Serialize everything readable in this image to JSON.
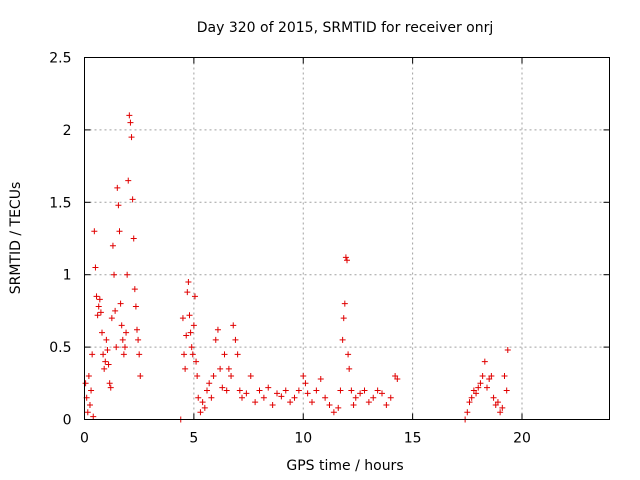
{
  "chart_data": {
    "type": "scatter",
    "title": "Day 320 of 2015, SRMTID for receiver onrj",
    "xlabel": "GPS time / hours",
    "ylabel": "SRMTID / TECUs",
    "xlim": [
      0,
      24
    ],
    "ylim": [
      0,
      2.5
    ],
    "xticks": [
      0,
      5,
      10,
      15,
      20
    ],
    "xtick_labels": [
      "0",
      "5",
      "10",
      "15",
      "20"
    ],
    "yticks": [
      0,
      0.5,
      1,
      1.5,
      2,
      2.5
    ],
    "ytick_labels": [
      "0",
      "0.5",
      "1",
      "1.5",
      "2",
      "2.5"
    ],
    "grid": true,
    "marker": "+",
    "series": [
      {
        "name": "SRMTID",
        "color": "#e00000",
        "x": [
          0.05,
          0.1,
          0.15,
          0.2,
          0.25,
          0.3,
          0.35,
          0.4,
          0.45,
          0.5,
          0.55,
          0.6,
          0.65,
          0.7,
          0.75,
          0.8,
          0.85,
          0.9,
          0.95,
          1.0,
          1.05,
          1.1,
          1.15,
          1.2,
          1.25,
          1.3,
          1.35,
          1.4,
          1.45,
          1.5,
          1.55,
          1.6,
          1.65,
          1.7,
          1.75,
          1.8,
          1.85,
          1.9,
          1.95,
          2.0,
          2.05,
          2.1,
          2.15,
          2.2,
          2.25,
          2.3,
          2.35,
          2.4,
          2.45,
          2.5,
          2.55,
          4.4,
          4.5,
          4.55,
          4.6,
          4.65,
          4.7,
          4.75,
          4.8,
          4.85,
          4.9,
          4.95,
          5.0,
          5.05,
          5.1,
          5.15,
          5.2,
          5.3,
          5.4,
          5.5,
          5.6,
          5.7,
          5.8,
          5.9,
          6.0,
          6.1,
          6.2,
          6.3,
          6.4,
          6.5,
          6.6,
          6.7,
          6.8,
          6.9,
          7.0,
          7.1,
          7.2,
          7.4,
          7.6,
          7.8,
          8.0,
          8.2,
          8.4,
          8.6,
          8.8,
          9.0,
          9.2,
          9.4,
          9.6,
          9.8,
          10.0,
          10.1,
          10.2,
          10.4,
          10.6,
          10.8,
          11.0,
          11.2,
          11.4,
          11.6,
          11.7,
          11.8,
          11.85,
          11.9,
          11.95,
          12.0,
          12.05,
          12.1,
          12.2,
          12.3,
          12.4,
          12.6,
          12.8,
          13.0,
          13.2,
          13.4,
          13.6,
          13.8,
          14.0,
          14.2,
          14.3,
          17.4,
          17.5,
          17.6,
          17.7,
          17.8,
          17.9,
          18.0,
          18.1,
          18.2,
          18.3,
          18.4,
          18.5,
          18.6,
          18.7,
          18.8,
          18.9,
          19.0,
          19.1,
          19.2,
          19.3,
          19.35
        ],
        "y": [
          0.25,
          0.15,
          0.05,
          0.3,
          0.1,
          0.2,
          0.45,
          0.02,
          1.3,
          1.05,
          0.85,
          0.72,
          0.78,
          0.83,
          0.74,
          0.6,
          0.45,
          0.35,
          0.4,
          0.55,
          0.48,
          0.38,
          0.25,
          0.22,
          0.7,
          1.2,
          1.0,
          0.75,
          0.5,
          1.6,
          1.48,
          1.3,
          0.8,
          0.65,
          0.55,
          0.45,
          0.5,
          0.6,
          1.0,
          1.65,
          2.1,
          2.05,
          1.95,
          1.52,
          1.25,
          0.9,
          0.78,
          0.62,
          0.55,
          0.45,
          0.3,
          0.0,
          0.7,
          0.45,
          0.35,
          0.58,
          0.88,
          0.95,
          0.72,
          0.6,
          0.5,
          0.45,
          0.65,
          0.85,
          0.4,
          0.3,
          0.15,
          0.05,
          0.12,
          0.08,
          0.2,
          0.25,
          0.15,
          0.3,
          0.55,
          0.62,
          0.35,
          0.22,
          0.45,
          0.2,
          0.35,
          0.3,
          0.65,
          0.55,
          0.45,
          0.2,
          0.15,
          0.18,
          0.3,
          0.12,
          0.2,
          0.15,
          0.22,
          0.1,
          0.18,
          0.16,
          0.2,
          0.12,
          0.15,
          0.2,
          0.3,
          0.25,
          0.18,
          0.12,
          0.2,
          0.28,
          0.15,
          0.1,
          0.05,
          0.08,
          0.2,
          0.55,
          0.7,
          0.8,
          1.12,
          1.1,
          0.45,
          0.35,
          0.2,
          0.1,
          0.15,
          0.18,
          0.2,
          0.12,
          0.15,
          0.2,
          0.18,
          0.1,
          0.15,
          0.3,
          0.28,
          0.0,
          0.05,
          0.12,
          0.15,
          0.2,
          0.18,
          0.22,
          0.25,
          0.3,
          0.4,
          0.22,
          0.28,
          0.3,
          0.15,
          0.1,
          0.12,
          0.05,
          0.08,
          0.3,
          0.2,
          0.48
        ]
      }
    ]
  }
}
